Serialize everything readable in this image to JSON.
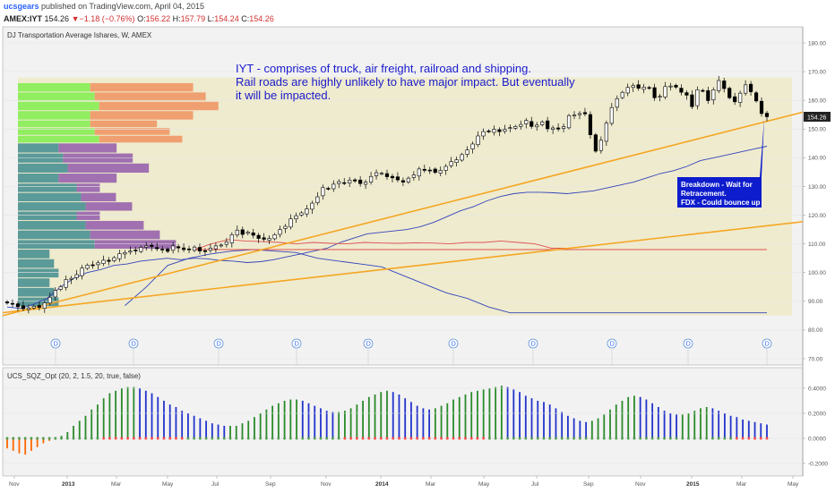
{
  "header": {
    "author": "ucsgears",
    "published_text": " published on TradingView.com, April 04, 2015",
    "symbol": "AMEX:IYT",
    "last": "154.26",
    "change_arrow": "▼",
    "change": "−1.18 (−0.76%)",
    "o_label": "O:",
    "o_value": "156.22",
    "h_label": "H:",
    "h_value": "157.79",
    "l_label": "L:",
    "l_value": "154.24",
    "c_label": "C:",
    "c_value": "154.26"
  },
  "colors": {
    "up": "#ffffff",
    "down": "#000000",
    "trendline": "#f5a623",
    "band_blue": "#3344bb",
    "band_red": "#e05050",
    "vp_green": "#90ee60",
    "vp_salmon": "#f0a070",
    "vp_teal": "#5a9a98",
    "vp_purple": "#a070b0",
    "zone_fill": "#eeeac8",
    "sqz_green": "#2a8a2a",
    "sqz_blue": "#2233cc",
    "sqz_orange": "#ff6600",
    "callout": "#0d1ccc"
  },
  "chart_data": [
    {
      "type": "candlestick",
      "title": "DJ Transportation Average Ishares, W, AMEX",
      "ylim": [
        68,
        185
      ],
      "y_ticks": [
        "180.00",
        "170.00",
        "160.00",
        "150.00",
        "140.00",
        "130.00",
        "120.00",
        "110.00",
        "100.00",
        "90.00",
        "80.00",
        "70.00"
      ],
      "last_price_label": "154.26",
      "close_series": [
        89.4,
        89.0,
        88.1,
        87.4,
        87.7,
        88.3,
        87.9,
        89.5,
        91.4,
        93.8,
        95.1,
        97.6,
        98.0,
        99.3,
        101.6,
        102.6,
        102.4,
        103.4,
        104.3,
        103.9,
        105.2,
        106.6,
        107.0,
        107.5,
        107.6,
        108.8,
        109.3,
        109.1,
        108.3,
        108.1,
        107.4,
        109.3,
        108.6,
        108.0,
        108.1,
        108.9,
        107.5,
        107.4,
        108.5,
        109.3,
        109.6,
        110.7,
        113.2,
        114.8,
        113.3,
        114.1,
        113.0,
        111.9,
        111.6,
        111.9,
        113.2,
        115.0,
        116.1,
        118.7,
        119.8,
        120.8,
        122.2,
        124.2,
        126.4,
        129.6,
        129.2,
        130.8,
        131.7,
        131.3,
        132.2,
        131.9,
        131.0,
        131.5,
        133.5,
        134.8,
        134.6,
        133.4,
        133.0,
        132.3,
        131.5,
        132.9,
        134.0,
        136.1,
        135.6,
        135.7,
        134.9,
        135.6,
        137.0,
        138.7,
        139.3,
        141.1,
        142.7,
        144.8,
        147.6,
        149.1,
        149.2,
        149.9,
        149.1,
        149.9,
        150.5,
        150.9,
        151.6,
        153.0,
        150.9,
        151.4,
        152.5,
        150.1,
        150.4,
        150.0,
        150.8,
        154.7,
        154.9,
        155.4,
        155.3,
        148.0,
        142.3,
        146.1,
        152.1,
        157.5,
        160.6,
        162.8,
        164.5,
        165.2,
        164.2,
        164.6,
        164.3,
        160.9,
        161.4,
        164.8,
        165.0,
        164.6,
        162.8,
        161.8,
        157.8,
        163.7,
        163.4,
        159.9,
        163.7,
        166.9,
        164.1,
        160.9,
        159.5,
        162.5,
        165.4,
        163.0,
        159.8,
        155.4,
        154.3
      ],
      "upper_band": [
        88.0,
        87.5,
        89.0,
        91.0,
        95.0,
        98.0,
        100.0,
        101.0,
        102.5,
        103.0,
        104.0,
        104.5,
        105.0,
        104.5,
        105.0,
        104.8,
        104.2,
        104.0,
        103.5,
        103.8,
        104.5,
        105.5,
        106.5,
        107.5,
        108.5,
        110.5,
        112.0,
        113.5,
        114.0,
        114.5,
        115.0,
        116.0,
        117.5,
        119.5,
        121.5,
        123.0,
        125.0,
        126.5,
        127.5,
        128.0,
        128.0,
        127.8,
        127.5,
        128.0,
        128.5,
        129.5,
        130.5,
        131.5,
        133.0,
        134.5,
        135.5,
        137.0,
        139.0,
        140.0,
        141.0,
        142.0,
        143.0,
        144.0
      ],
      "lower_band": [
        88.5,
        95.0,
        102.5,
        105.0,
        106.5,
        107.5,
        108.0,
        107.5,
        107.0,
        105.0,
        104.0,
        103.0,
        102.0,
        99.0,
        96.0,
        93.0,
        91.0,
        88.0,
        86.0,
        86.0,
        86.0,
        86.0,
        86.0,
        86.0,
        86.0,
        86.0,
        86.0,
        86.0,
        86.0,
        86.0,
        86.0
      ],
      "red_band": [
        108.0,
        110.0,
        111.5,
        111.0,
        110.8,
        110.5,
        110.0,
        110.5,
        110.2,
        110.0,
        110.5,
        110.3,
        110.2,
        110.4,
        110.3,
        110.0,
        110.5,
        110.5,
        111.0,
        110.5,
        110.0,
        108.5,
        108.5
      ],
      "support_level": 108,
      "trendline_1": {
        "from": [
          85.4,
          0
        ],
        "to": [
          156.5,
          150
        ]
      },
      "trendline_2": {
        "from": [
          86.2,
          0
        ],
        "to": [
          118.0,
          150
        ]
      },
      "dividend_markers": [
        "D",
        "D",
        "D",
        "D",
        "D",
        "D",
        "D",
        "D",
        "D",
        "D"
      ],
      "annotation_lines": [
        "IYT - comprises of truck, air freight, railroad and shipping.",
        "Rail roads are highly unlikely to have major impact. But eventually",
        "it will be impacted."
      ],
      "callout_lines": [
        "Breakdown - Wait for",
        "Retracement.",
        "FDX - Could bounce up"
      ],
      "volume_profile_rows": [
        {
          "price_low": 153,
          "price_high": 166,
          "green": 17,
          "salmon": 28
        },
        {
          "price_low": 145,
          "price_high": 153,
          "green": 17,
          "salmon": 20
        },
        {
          "price_low": 131,
          "price_high": 145,
          "teal": 10,
          "purple": 12
        },
        {
          "price_low": 118,
          "price_high": 131,
          "teal": 14,
          "purple": 6
        },
        {
          "price_low": 108,
          "price_high": 118,
          "teal": 16,
          "purple": 12
        },
        {
          "price_low": 88,
          "price_high": 108,
          "teal": 8,
          "purple": 0
        }
      ]
    },
    {
      "type": "bar",
      "title": "UCS_SQZ_Opt (20, 2, 1.5, 20, true, false)",
      "ylim": [
        -0.25,
        0.48
      ],
      "y_ticks": [
        "0.4000",
        "0.2000",
        "0.0000",
        "-0.2000"
      ],
      "values": [
        -0.08,
        -0.1,
        -0.12,
        -0.13,
        -0.1,
        -0.07,
        -0.04,
        -0.02,
        -0.01,
        0.02,
        0.05,
        0.1,
        0.14,
        0.18,
        0.23,
        0.27,
        0.32,
        0.36,
        0.38,
        0.4,
        0.41,
        0.41,
        0.4,
        0.38,
        0.36,
        0.33,
        0.3,
        0.27,
        0.25,
        0.22,
        0.2,
        0.18,
        0.16,
        0.14,
        0.12,
        0.11,
        0.1,
        0.1,
        0.1,
        0.12,
        0.14,
        0.17,
        0.2,
        0.23,
        0.26,
        0.28,
        0.3,
        0.31,
        0.31,
        0.3,
        0.28,
        0.26,
        0.24,
        0.22,
        0.21,
        0.21,
        0.22,
        0.24,
        0.27,
        0.3,
        0.33,
        0.35,
        0.37,
        0.38,
        0.37,
        0.35,
        0.32,
        0.29,
        0.26,
        0.24,
        0.23,
        0.24,
        0.26,
        0.28,
        0.31,
        0.33,
        0.35,
        0.37,
        0.38,
        0.39,
        0.4,
        0.41,
        0.42,
        0.41,
        0.39,
        0.37,
        0.34,
        0.32,
        0.3,
        0.29,
        0.27,
        0.24,
        0.21,
        0.18,
        0.16,
        0.14,
        0.13,
        0.14,
        0.16,
        0.19,
        0.23,
        0.27,
        0.3,
        0.33,
        0.34,
        0.33,
        0.31,
        0.28,
        0.25,
        0.22,
        0.2,
        0.19,
        0.19,
        0.2,
        0.22,
        0.24,
        0.25,
        0.24,
        0.22,
        0.2,
        0.18,
        0.17,
        0.15,
        0.14,
        0.13,
        0.12,
        0.11
      ],
      "colors_rule": "green when rising, blue when falling, orange when negative",
      "dot_colors": "red during squeeze, green otherwise"
    }
  ],
  "x_axis": {
    "labels": [
      "Nov",
      "2013",
      "Mar",
      "May",
      "Jul",
      "Sep",
      "Nov",
      "2014",
      "Mar",
      "May",
      "Jul",
      "Sep",
      "Nov",
      "2015",
      "Mar",
      "May"
    ],
    "bold": [
      false,
      true,
      false,
      false,
      false,
      false,
      false,
      true,
      false,
      false,
      false,
      false,
      false,
      true,
      false,
      false
    ]
  }
}
